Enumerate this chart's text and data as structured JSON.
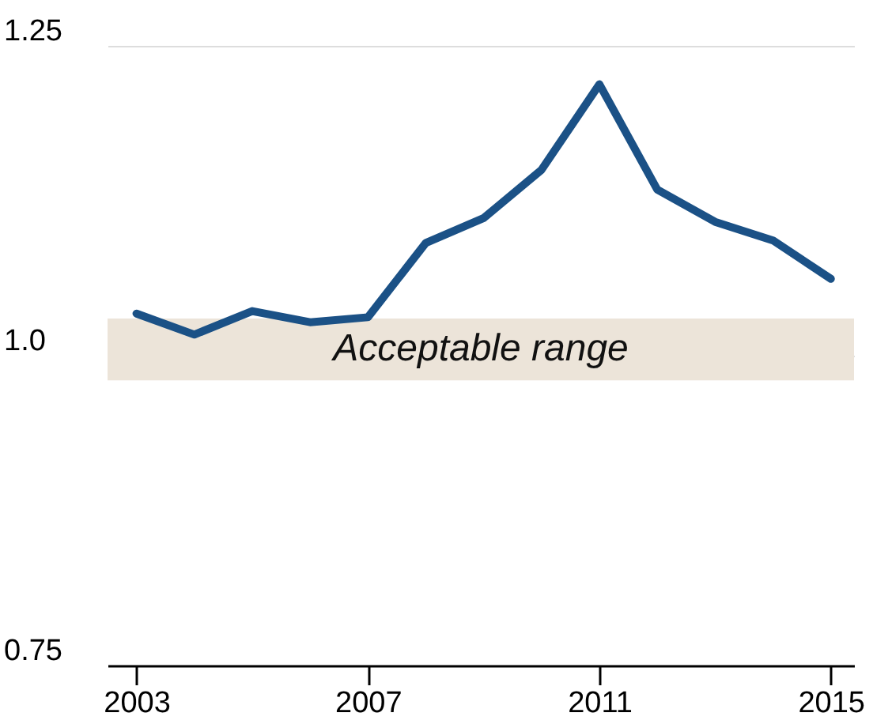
{
  "chart_data": {
    "type": "line",
    "x": [
      2003,
      2004,
      2005,
      2006,
      2007,
      2008,
      2009,
      2010,
      2011,
      2012,
      2013,
      2014,
      2015
    ],
    "series": [
      {
        "color": "#1b5186",
        "values": [
          1.034,
          1.017,
          1.036,
          1.027,
          1.031,
          1.091,
          1.111,
          1.15,
          1.219,
          1.134,
          1.108,
          1.093,
          1.062
        ]
      }
    ],
    "xlim": [
      2002.5,
      2015.4
    ],
    "xticks": [
      2003,
      2007,
      2011,
      2015
    ],
    "ylim": [
      0.75,
      1.25
    ],
    "yticks": [
      {
        "value": 0.75,
        "label": "0.75"
      },
      {
        "value": 1.0,
        "label": "1.0"
      },
      {
        "value": 1.25,
        "label": "1.25"
      }
    ],
    "bands": [
      {
        "axis": "y",
        "from": 0.98,
        "to": 1.03,
        "label": "Acceptable range",
        "color": "#ece4d9"
      }
    ],
    "grid": "y",
    "marker": "none",
    "line_style": "solid"
  }
}
